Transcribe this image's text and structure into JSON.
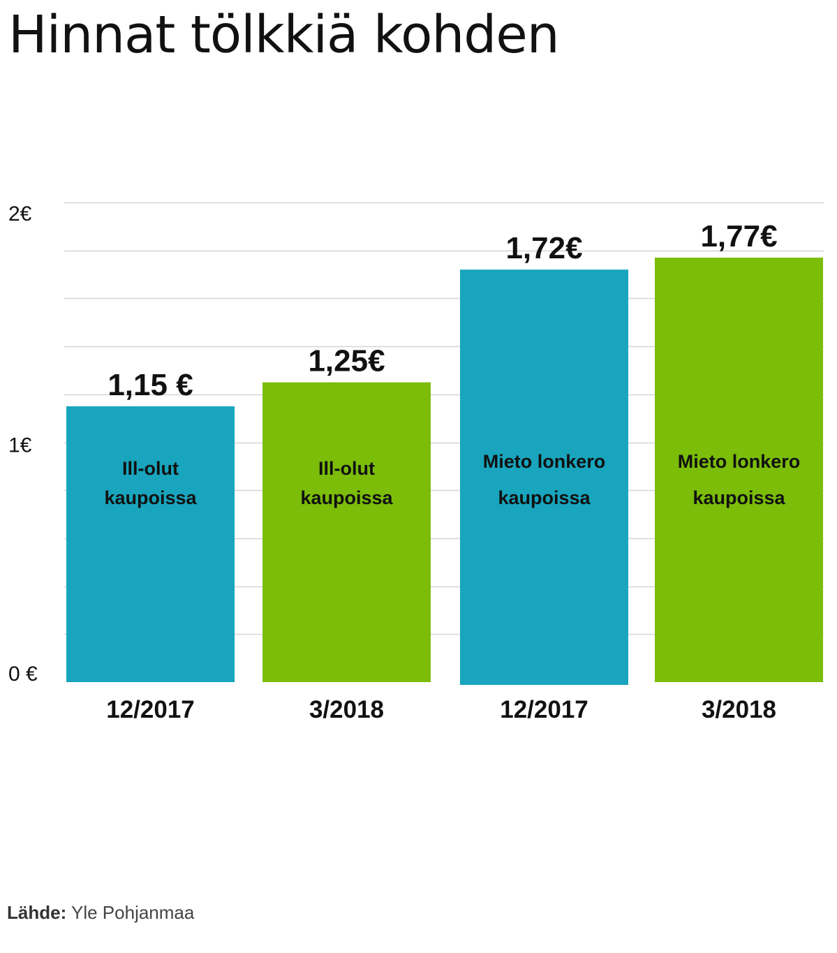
{
  "title": "Hinnat tölkkiä kohden",
  "source": {
    "label": "Lähde:",
    "text": "Yle Pohjanmaa"
  },
  "colors": {
    "blue": "#18a5bd",
    "green": "#7bbd09",
    "grid": "#d5d5d5"
  },
  "chart_data": {
    "type": "bar",
    "title": "Hinnat tölkkiä kohden",
    "categories": [
      "12/2017",
      "3/2018",
      "12/2017",
      "3/2018"
    ],
    "values": [
      1.15,
      1.25,
      1.72,
      1.77
    ],
    "value_labels": [
      "1,15 €",
      "1,25€",
      "1,72€",
      "1,77€"
    ],
    "bar_labels": [
      [
        "Ill-olut",
        "kaupoissa"
      ],
      [
        "Ill-olut",
        "kaupoissa"
      ],
      [
        "Mieto lonkero",
        "kaupoissa"
      ],
      [
        "Mieto lonkero",
        "kaupoissa"
      ]
    ],
    "bar_colors": [
      "#18a5bd",
      "#7bbd09",
      "#18a5bd",
      "#7bbd09"
    ],
    "y_ticks": [
      {
        "value": 0,
        "label": "0 €"
      },
      {
        "value": 1,
        "label": "1€"
      },
      {
        "value": 2,
        "label": "2€"
      }
    ],
    "ylim": [
      0,
      2
    ],
    "grid": true,
    "xlabel": "",
    "ylabel": ""
  }
}
